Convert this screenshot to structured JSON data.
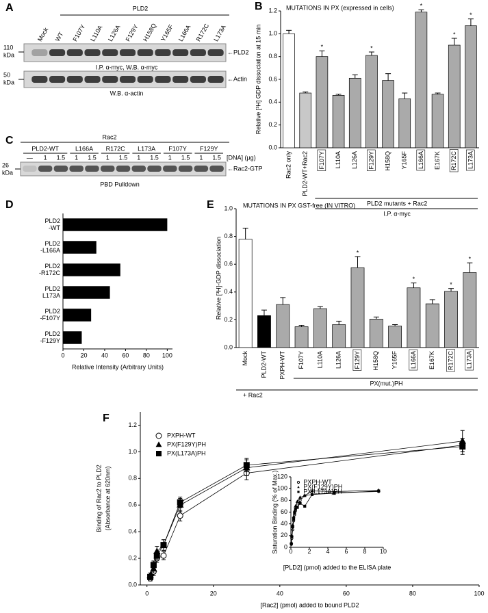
{
  "blots": [
    {
      "panel": "A",
      "header": "PLD2",
      "lanes": [
        "Mock",
        "WT",
        "F107Y",
        "L110A",
        "L126A",
        "F129Y",
        "H158Q",
        "Y165F",
        "L166A",
        "R172C",
        "L173A"
      ],
      "rows": [
        {
          "marker": [
            "110",
            "kDa"
          ],
          "label": "←PLD2",
          "caption": "I.P. α-myc, W.B. α-myc"
        },
        {
          "marker": [
            "50",
            "kDa"
          ],
          "label": "←Actin",
          "caption": "W.B. α-actin"
        }
      ]
    },
    {
      "panel": "C",
      "header": "Rac2",
      "groups": [
        {
          "name": "PLD2-WT",
          "doses": [
            "—",
            "1",
            "1.5"
          ]
        },
        {
          "name": "L166A",
          "doses": [
            "1",
            "1.5"
          ]
        },
        {
          "name": "R172C",
          "doses": [
            "1",
            "1.5"
          ]
        },
        {
          "name": "L173A",
          "doses": [
            "1",
            "1.5"
          ]
        },
        {
          "name": "F107Y",
          "doses": [
            "1",
            "1.5"
          ]
        },
        {
          "name": "F129Y",
          "doses": [
            "1",
            "1.5"
          ]
        }
      ],
      "dose_unit": "[DNA] (µg)",
      "marker": [
        "26",
        "kDa"
      ],
      "label": "←Rac2-GTP",
      "caption": "PBD Pulldown"
    }
  ],
  "chart_data": [
    {
      "panel": "B",
      "type": "bar",
      "title": "MUTATIONS IN PX (expressed in cells)",
      "ylabel": "Relative [³H] GDP dissociation at 15 min",
      "categories": [
        "Rac2 only",
        "PLD2-WT+Rac2",
        "F107Y",
        "L110A",
        "L126A",
        "F129Y",
        "H158Q",
        "Y165F",
        "L166A",
        "E167K",
        "R172C",
        "L173A"
      ],
      "values": [
        1.0,
        0.48,
        0.8,
        0.46,
        0.61,
        0.81,
        0.59,
        0.43,
        1.19,
        0.47,
        0.9,
        1.07
      ],
      "errors": [
        0.03,
        0.01,
        0.05,
        0.01,
        0.03,
        0.03,
        0.06,
        0.05,
        0.02,
        0.01,
        0.06,
        0.06
      ],
      "colors": [
        "#ffffff",
        "#c8c8c8",
        "#aaaaaa",
        "#aaaaaa",
        "#aaaaaa",
        "#aaaaaa",
        "#aaaaaa",
        "#aaaaaa",
        "#aaaaaa",
        "#aaaaaa",
        "#aaaaaa",
        "#aaaaaa"
      ],
      "marker": "*",
      "marked": [
        "F107Y",
        "F129Y",
        "L166A",
        "R172C",
        "L173A"
      ],
      "boxed": [
        "F107Y",
        "F129Y",
        "L166A",
        "R172C",
        "L173A"
      ],
      "group_label": "PLD2 mutants + Rac2",
      "sub_label": "I.P.  α-myc",
      "ylim": [
        0,
        1.2
      ],
      "yticks": [
        {
          "value": 0,
          "label": "0.0"
        },
        0.2,
        0.4,
        0.6,
        0.8,
        {
          "value": 1,
          "label": "1.0"
        },
        1.2
      ]
    },
    {
      "panel": "D",
      "type": "hbar",
      "xlabel": "Relative Intensity (Arbitrary Units)",
      "categories": [
        [
          "PLD2",
          "-WT"
        ],
        [
          "PLD2",
          "-L166A"
        ],
        [
          "PLD2",
          "-R172C"
        ],
        [
          "PLD2",
          "L173A"
        ],
        [
          "PLD2",
          "-F107Y"
        ],
        [
          "PLD2",
          "-F129Y"
        ]
      ],
      "values": [
        100,
        32,
        55,
        45,
        27,
        18
      ],
      "color": "#000000",
      "xlim": [
        0,
        105
      ],
      "xticks": [
        0,
        20,
        40,
        60,
        80,
        100
      ]
    },
    {
      "panel": "E",
      "type": "bar",
      "title": "MUTATIONS IN PX  GST-free (IN VITRO)",
      "ylabel": "Relative [³H]-GDP dissociation",
      "categories": [
        "Mock",
        "PLD2-WT",
        "PXPH-WT",
        "F107Y",
        "L110A",
        "L126A",
        "F129Y",
        "H158Q",
        "Y165F",
        "L166A",
        "E167K",
        "R172C",
        "L173A"
      ],
      "values": [
        0.78,
        0.23,
        0.31,
        0.15,
        0.28,
        0.165,
        0.575,
        0.205,
        0.155,
        0.43,
        0.315,
        0.405,
        0.54
      ],
      "errors": [
        0.08,
        0.04,
        0.05,
        0.01,
        0.015,
        0.025,
        0.08,
        0.015,
        0.01,
        0.035,
        0.03,
        0.02,
        0.07
      ],
      "colors": [
        "#ffffff",
        "#000000",
        "#aaaaaa",
        "#aaaaaa",
        "#aaaaaa",
        "#aaaaaa",
        "#aaaaaa",
        "#aaaaaa",
        "#aaaaaa",
        "#aaaaaa",
        "#aaaaaa",
        "#aaaaaa",
        "#aaaaaa"
      ],
      "marker": "*",
      "marked": [
        "F129Y",
        "L166A",
        "R172C",
        "L173A"
      ],
      "boxed": [
        "F129Y",
        "L166A",
        "R172C",
        "L173A"
      ],
      "group_label": "PX(mut.)PH",
      "sub_label": "+ Rac2",
      "ylim": [
        0,
        1.0
      ],
      "yticks": [
        {
          "value": 0,
          "label": "0.0"
        },
        0.2,
        0.4,
        0.6,
        0.8,
        {
          "value": 1,
          "label": "1.0"
        }
      ]
    },
    {
      "panel": "F",
      "type": "scatter",
      "xlabel": "[Rac2] (pmol) added to bound PLD2",
      "ylabel": [
        "Binding of Rac2 to PLD2",
        "(Absorbance at 620nm)"
      ],
      "x": [
        1,
        2,
        3,
        5,
        10,
        30,
        95
      ],
      "series": [
        {
          "name": "PXPH-WT",
          "marker": "circle",
          "color": "#000000",
          "values": [
            0.05,
            0.1,
            0.2,
            0.22,
            0.52,
            0.84,
            1.05
          ],
          "errors": [
            0.02,
            0.03,
            0.03,
            0.03,
            0.04,
            0.05,
            0.05
          ]
        },
        {
          "name": "PX(F129Y)PH",
          "marker": "triangle",
          "color": "#000000",
          "values": [
            0.07,
            0.12,
            0.25,
            0.3,
            0.6,
            0.88,
            1.08
          ],
          "errors": [
            0.02,
            0.03,
            0.04,
            0.04,
            0.05,
            0.06,
            0.08
          ]
        },
        {
          "name": "PX(L173A)PH",
          "marker": "square",
          "color": "#000000",
          "values": [
            0.06,
            0.15,
            0.22,
            0.3,
            0.62,
            0.9,
            1.04
          ],
          "errors": [
            0.02,
            0.03,
            0.03,
            0.04,
            0.04,
            0.05,
            0.06
          ]
        }
      ],
      "xlim": [
        -2,
        100
      ],
      "xticks": [
        0,
        20,
        40,
        60,
        80,
        100
      ],
      "ylim": [
        0,
        1.3
      ],
      "yticks": [
        {
          "value": 0,
          "label": "0.0"
        },
        0.2,
        0.4,
        0.6,
        0.8,
        {
          "value": 1,
          "label": "1.0"
        },
        1.2
      ]
    },
    {
      "panel": "inset",
      "type": "scatter",
      "xlabel": "[PLD2] (pmol) added to the ELISA plate",
      "ylabel": [
        "Saturation Binding (% of Max.)"
      ],
      "x": [
        0.05,
        0.1,
        0.2,
        0.3,
        0.4,
        0.5,
        0.7,
        1,
        1.5,
        2.3,
        4.7,
        9.5
      ],
      "series": [
        {
          "name": "PXPH-WT",
          "marker": "circle",
          "color": "#000000",
          "values": [
            5,
            15,
            30,
            45,
            55,
            62,
            72,
            80,
            88,
            90,
            93,
            95
          ]
        },
        {
          "name": "PX(F129Y)PH",
          "marker": "triangle",
          "color": "#000000",
          "values": [
            8,
            20,
            38,
            52,
            62,
            70,
            78,
            85,
            88,
            96,
            95,
            97
          ]
        },
        {
          "name": "PX(L173A)PH",
          "marker": "square",
          "color": "#000000",
          "values": [
            6,
            18,
            35,
            48,
            58,
            65,
            68,
            75,
            70,
            90,
            92,
            96
          ]
        }
      ],
      "xlim": [
        0,
        10
      ],
      "xticks": [
        0,
        2,
        4,
        6,
        8,
        10
      ],
      "ylim": [
        0,
        120
      ],
      "yticks": [
        0,
        20,
        40,
        60,
        80,
        100,
        120
      ]
    }
  ]
}
